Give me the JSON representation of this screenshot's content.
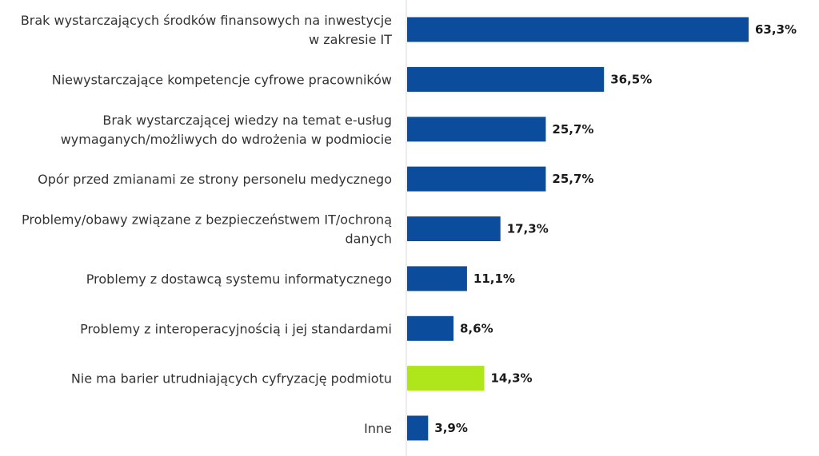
{
  "chart_data": {
    "type": "bar",
    "orientation": "horizontal",
    "title": "",
    "xlabel": "",
    "ylabel": "",
    "xlim": [
      0,
      63.3
    ],
    "grid": false,
    "legend": "none",
    "value_suffix": "%",
    "colors": {
      "default": "#0b4c9c",
      "highlight": "#aee51b",
      "axis": "#d9d9d9"
    },
    "categories": [
      [
        "Brak wystarczających środków finansowych na inwestycje",
        "w zakresie IT"
      ],
      [
        "Niewystarczające kompetencje cyfrowe pracowników"
      ],
      [
        "Brak wystarczającej wiedzy na temat e-usług",
        "wymaganych/możliwych do wdrożenia w podmiocie"
      ],
      [
        "Opór przed zmianami ze strony personelu medycznego"
      ],
      [
        "Problemy/obawy związane z bezpieczeństwem IT/ochroną",
        "danych"
      ],
      [
        "Problemy z dostawcą systemu informatycznego"
      ],
      [
        "Problemy z interoperacyjnością i jej standardami"
      ],
      [
        "Nie ma barier utrudniających cyfryzację podmiotu"
      ],
      [
        "Inne"
      ]
    ],
    "values": [
      63.3,
      36.5,
      25.7,
      25.7,
      17.3,
      11.1,
      8.6,
      14.3,
      3.9
    ],
    "value_labels": [
      "63,3%",
      "36,5%",
      "25,7%",
      "25,7%",
      "17,3%",
      "11,1%",
      "8,6%",
      "14,3%",
      "3,9%"
    ],
    "highlight_index": 7
  }
}
